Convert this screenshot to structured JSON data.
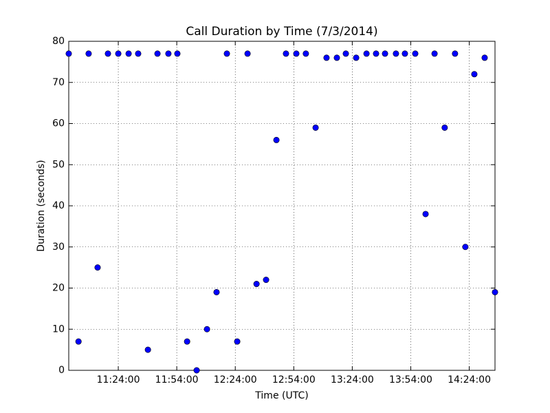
{
  "chart_data": {
    "type": "scatter",
    "title": "Call Duration by Time (7/3/2014)",
    "x_label": "Time (UTC)",
    "y_label": "Duration (seconds)",
    "x": [
      "10:58:36",
      "11:03:36",
      "11:08:48",
      "11:13:24",
      "11:18:42",
      "11:24:00",
      "11:29:18",
      "11:34:12",
      "11:39:12",
      "11:44:06",
      "11:49:42",
      "11:54:18",
      "11:59:18",
      "12:04:12",
      "12:09:30",
      "12:14:24",
      "12:19:42",
      "12:25:00",
      "12:30:18",
      "12:34:54",
      "12:39:48",
      "12:45:06",
      "12:50:00",
      "12:55:18",
      "13:00:12",
      "13:05:12",
      "13:10:48",
      "13:16:06",
      "13:20:42",
      "13:26:00",
      "13:31:18",
      "13:36:12",
      "13:40:48",
      "13:46:24",
      "13:51:00",
      "13:56:18",
      "14:01:36",
      "14:06:12",
      "14:11:24",
      "14:16:42",
      "14:22:00",
      "14:26:36",
      "14:31:54",
      "14:37:12"
    ],
    "values": [
      77,
      7,
      77,
      25,
      77,
      77,
      77,
      77,
      5,
      77,
      77,
      77,
      7,
      0,
      10,
      19,
      77,
      7,
      77,
      21,
      22,
      56,
      77,
      77,
      77,
      59,
      76,
      76,
      77,
      76,
      77,
      77,
      77,
      77,
      77,
      77,
      38,
      77,
      59,
      77,
      30,
      72,
      76,
      19
    ],
    "color": "#0000ff",
    "xlim": [
      "10:58:36",
      "14:37:12"
    ],
    "xticks": [
      "11:24:00",
      "11:54:00",
      "12:24:00",
      "12:54:00",
      "13:24:00",
      "13:54:00",
      "14:24:00"
    ],
    "ylim": [
      0,
      80
    ],
    "yticks": [
      0,
      10,
      20,
      30,
      40,
      50,
      60,
      70,
      80
    ],
    "grid": true
  }
}
